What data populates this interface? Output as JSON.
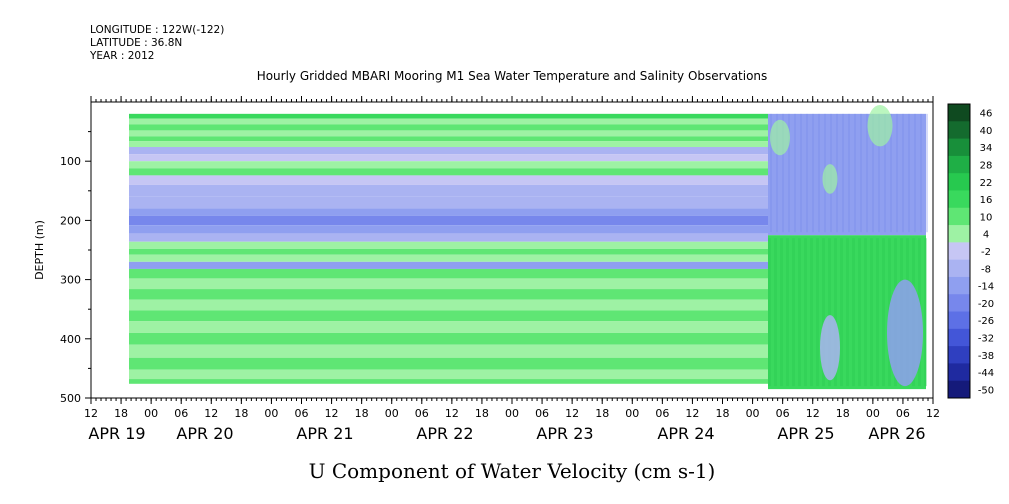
{
  "header": {
    "longitude": "LONGITUDE : 122W(-122)",
    "latitude": "LATITUDE : 36.8N",
    "year": "YEAR : 2012"
  },
  "chart_data": {
    "type": "heatmap",
    "title": "Hourly Gridded MBARI Mooring M1 Sea Water Temperature and Salinity Observations",
    "xlabel": "U Component of Water Velocity (cm s-1)",
    "ylabel": "DEPTH (m)",
    "ylim": [
      500,
      0
    ],
    "yticks": [
      100,
      200,
      300,
      400,
      500
    ],
    "xhour_labels": [
      "12",
      "18",
      "00",
      "06",
      "12",
      "18",
      "00",
      "06",
      "12",
      "18",
      "00",
      "06",
      "12",
      "18",
      "00",
      "06",
      "12",
      "18",
      "00",
      "06",
      "12",
      "18",
      "00",
      "06",
      "12",
      "18",
      "00",
      "06",
      "12"
    ],
    "xdate_labels": [
      "APR 19",
      "APR 20",
      "APR 21",
      "APR 22",
      "APR 23",
      "APR 24",
      "APR 25",
      "APR 26"
    ],
    "colorbar": {
      "levels": [
        46,
        40,
        34,
        28,
        22,
        16,
        10,
        4,
        -2,
        -8,
        -14,
        -20,
        -26,
        -32,
        -38,
        -44,
        -50
      ],
      "colors": [
        "#0f4a20",
        "#146b2e",
        "#188f3a",
        "#1faf46",
        "#27c94f",
        "#39d95d",
        "#5fe674",
        "#9ef2a4",
        "#c6c6f4",
        "#aab3f2",
        "#8f9ff0",
        "#7787ec",
        "#5d70e6",
        "#4356d8",
        "#2f3fc0",
        "#1f2aa0",
        "#151a7a"
      ]
    },
    "depth_bands": [
      {
        "depth": [
          20,
          28
        ],
        "value": 16
      },
      {
        "depth": [
          28,
          38
        ],
        "value": 4
      },
      {
        "depth": [
          38,
          48
        ],
        "value": 10
      },
      {
        "depth": [
          48,
          58
        ],
        "value": 4
      },
      {
        "depth": [
          58,
          66
        ],
        "value": 10
      },
      {
        "depth": [
          66,
          76
        ],
        "value": 4
      },
      {
        "depth": [
          76,
          88
        ],
        "value": -8
      },
      {
        "depth": [
          88,
          100
        ],
        "value": -2
      },
      {
        "depth": [
          100,
          112
        ],
        "value": 4
      },
      {
        "depth": [
          112,
          124
        ],
        "value": 10
      },
      {
        "depth": [
          124,
          140
        ],
        "value": -2
      },
      {
        "depth": [
          140,
          160
        ],
        "value": -8
      },
      {
        "depth": [
          160,
          180
        ],
        "value": -8
      },
      {
        "depth": [
          180,
          192
        ],
        "value": -14
      },
      {
        "depth": [
          192,
          208
        ],
        "value": -20
      },
      {
        "depth": [
          208,
          222
        ],
        "value": -14
      },
      {
        "depth": [
          222,
          236
        ],
        "value": -8
      },
      {
        "depth": [
          236,
          248
        ],
        "value": 4
      },
      {
        "depth": [
          248,
          258
        ],
        "value": 10
      },
      {
        "depth": [
          258,
          270
        ],
        "value": 4
      },
      {
        "depth": [
          270,
          282
        ],
        "value": -14
      },
      {
        "depth": [
          282,
          298
        ],
        "value": 10
      },
      {
        "depth": [
          298,
          316
        ],
        "value": 4
      },
      {
        "depth": [
          316,
          334
        ],
        "value": 10
      },
      {
        "depth": [
          334,
          352
        ],
        "value": 4
      },
      {
        "depth": [
          352,
          370
        ],
        "value": 10
      },
      {
        "depth": [
          370,
          390
        ],
        "value": 4
      },
      {
        "depth": [
          390,
          410
        ],
        "value": 10
      },
      {
        "depth": [
          410,
          432
        ],
        "value": 4
      },
      {
        "depth": [
          432,
          452
        ],
        "value": 10
      },
      {
        "depth": [
          452,
          468
        ],
        "value": 4
      },
      {
        "depth": [
          468,
          476
        ],
        "value": 10
      }
    ],
    "observed_region": {
      "upper": {
        "depth": [
          20,
          225
        ],
        "value": -14
      },
      "lower": {
        "depth": [
          225,
          485
        ],
        "value": 16
      },
      "blue_patches": [
        {
          "depth": [
            360,
            470
          ],
          "value": -8
        },
        {
          "depth": [
            300,
            480
          ],
          "value": -14
        }
      ]
    }
  }
}
